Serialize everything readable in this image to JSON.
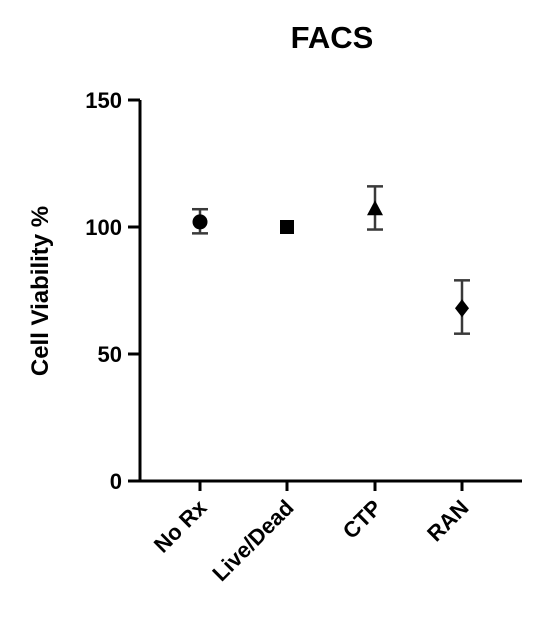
{
  "chart_data": {
    "type": "scatter",
    "title": "FACS",
    "ylabel": "Cell Viability %",
    "xlabel": "",
    "ylim": [
      0,
      150
    ],
    "yticks": [
      0,
      50,
      100,
      150
    ],
    "categories": [
      "No Rx",
      "Live/Dead",
      "CTP",
      "RAN"
    ],
    "values": [
      102,
      100,
      107,
      68
    ],
    "error_high": [
      107,
      100,
      116,
      79
    ],
    "error_low": [
      97.5,
      100,
      99,
      58
    ],
    "markers": [
      "circle",
      "square",
      "triangle",
      "diamond"
    ],
    "marker_color": "#000000",
    "grid": false,
    "legend": "none"
  }
}
